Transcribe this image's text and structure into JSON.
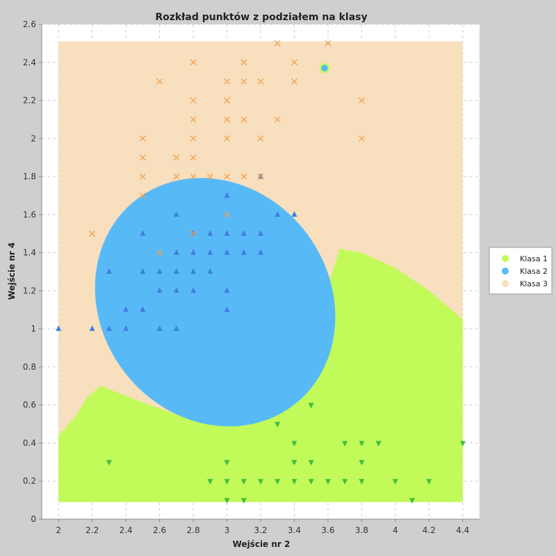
{
  "chart_data": {
    "type": "scatter",
    "title": "Rozkład punktów z podziałem na klasy",
    "xlabel": "Wejście nr 2",
    "ylabel": "Wejście nr 4",
    "xlim": [
      1.9,
      4.5
    ],
    "ylim": [
      0,
      2.6
    ],
    "x_ticks": [
      "2",
      "2.2",
      "2.4",
      "2.6",
      "2.8",
      "3",
      "3.2",
      "3.4",
      "3.6",
      "3.8",
      "4",
      "4.2",
      "4.4"
    ],
    "y_ticks": [
      "0",
      "0.2",
      "0.4",
      "0.6",
      "0.8",
      "1",
      "1.2",
      "1.4",
      "1.6",
      "1.8",
      "2",
      "2.2",
      "2.4",
      "2.6"
    ],
    "grid": true,
    "legend_position": "right",
    "legend": [
      {
        "name": "Klasa 1",
        "color": "#c2fa5a"
      },
      {
        "name": "Klasa 2",
        "color": "#58b9f7"
      },
      {
        "name": "Klasa 3",
        "color": "#f8dfbd"
      }
    ],
    "regions_colors": {
      "klasa1": "#c2fa5a",
      "klasa2": "#58b9f7",
      "klasa3": "#f8dfbd"
    },
    "region_domain": {
      "x": [
        2.0,
        4.4
      ],
      "y": [
        0.09,
        2.51
      ]
    },
    "region_klasa2_ellipse": {
      "cx": 2.93,
      "cy": 1.14,
      "rx": 0.68,
      "ry": 0.68,
      "angle_deg": 37
    },
    "region_klasa1_boundary": [
      [
        2.0,
        0.44
      ],
      [
        2.1,
        0.54
      ],
      [
        2.17,
        0.64
      ],
      [
        2.25,
        0.7
      ],
      [
        2.45,
        0.63
      ],
      [
        2.7,
        0.55
      ],
      [
        3.0,
        0.58
      ],
      [
        3.25,
        0.75
      ],
      [
        3.45,
        1.0
      ],
      [
        3.6,
        1.23
      ],
      [
        3.67,
        1.42
      ],
      [
        3.8,
        1.4
      ],
      [
        4.0,
        1.32
      ],
      [
        4.2,
        1.2
      ],
      [
        4.4,
        1.05
      ]
    ],
    "marker_styles": {
      "klasa1": {
        "shape": "triangle-down",
        "color": "#3fbf3f"
      },
      "klasa2": {
        "shape": "triangle-up",
        "color": "#3f7fe0"
      },
      "klasa3": {
        "shape": "x",
        "color": "#f0a050"
      }
    },
    "series": [
      {
        "class": "klasa1",
        "points": [
          [
            2.3,
            0.3
          ],
          [
            2.9,
            0.2
          ],
          [
            3.0,
            0.3
          ],
          [
            3.0,
            0.2
          ],
          [
            3.0,
            0.1
          ],
          [
            3.1,
            0.2
          ],
          [
            3.1,
            0.1
          ],
          [
            3.2,
            0.2
          ],
          [
            3.3,
            0.2
          ],
          [
            3.3,
            0.5
          ],
          [
            3.4,
            0.4
          ],
          [
            3.4,
            0.3
          ],
          [
            3.4,
            0.2
          ],
          [
            3.5,
            0.6
          ],
          [
            3.5,
            0.3
          ],
          [
            3.5,
            0.2
          ],
          [
            3.6,
            0.2
          ],
          [
            3.7,
            0.4
          ],
          [
            3.7,
            0.2
          ],
          [
            3.8,
            0.4
          ],
          [
            3.8,
            0.3
          ],
          [
            3.8,
            0.2
          ],
          [
            3.9,
            0.4
          ],
          [
            4.0,
            0.2
          ],
          [
            4.1,
            0.1
          ],
          [
            4.2,
            0.2
          ],
          [
            4.4,
            0.4
          ]
        ]
      },
      {
        "class": "klasa2",
        "points": [
          [
            2.0,
            1.0
          ],
          [
            2.2,
            1.0
          ],
          [
            2.3,
            1.0
          ],
          [
            2.3,
            1.3
          ],
          [
            2.4,
            1.0
          ],
          [
            2.4,
            1.1
          ],
          [
            2.5,
            1.1
          ],
          [
            2.5,
            1.3
          ],
          [
            2.5,
            1.5
          ],
          [
            2.6,
            1.0
          ],
          [
            2.6,
            1.2
          ],
          [
            2.6,
            1.3
          ],
          [
            2.7,
            1.0
          ],
          [
            2.7,
            1.2
          ],
          [
            2.7,
            1.3
          ],
          [
            2.7,
            1.4
          ],
          [
            2.7,
            1.6
          ],
          [
            2.8,
            1.2
          ],
          [
            2.8,
            1.3
          ],
          [
            2.8,
            1.4
          ],
          [
            2.8,
            1.5
          ],
          [
            2.9,
            1.3
          ],
          [
            2.9,
            1.4
          ],
          [
            2.9,
            1.5
          ],
          [
            3.0,
            1.1
          ],
          [
            3.0,
            1.2
          ],
          [
            3.0,
            1.4
          ],
          [
            3.0,
            1.5
          ],
          [
            3.0,
            1.7
          ],
          [
            3.1,
            1.4
          ],
          [
            3.1,
            1.5
          ],
          [
            3.2,
            1.4
          ],
          [
            3.2,
            1.5
          ],
          [
            3.2,
            1.8
          ],
          [
            3.3,
            1.6
          ],
          [
            3.4,
            1.6
          ]
        ]
      },
      {
        "class": "klasa3",
        "points": [
          [
            2.2,
            1.5
          ],
          [
            2.5,
            1.7
          ],
          [
            2.5,
            1.8
          ],
          [
            2.5,
            1.9
          ],
          [
            2.5,
            2.0
          ],
          [
            2.6,
            1.4
          ],
          [
            2.6,
            2.3
          ],
          [
            2.7,
            1.8
          ],
          [
            2.7,
            1.9
          ],
          [
            2.8,
            1.5
          ],
          [
            2.8,
            1.8
          ],
          [
            2.8,
            1.9
          ],
          [
            2.8,
            2.0
          ],
          [
            2.8,
            2.1
          ],
          [
            2.8,
            2.2
          ],
          [
            2.8,
            2.4
          ],
          [
            2.9,
            1.8
          ],
          [
            3.0,
            1.6
          ],
          [
            3.0,
            1.8
          ],
          [
            3.0,
            2.0
          ],
          [
            3.0,
            2.1
          ],
          [
            3.0,
            2.2
          ],
          [
            3.0,
            2.3
          ],
          [
            3.1,
            1.8
          ],
          [
            3.1,
            2.1
          ],
          [
            3.1,
            2.3
          ],
          [
            3.1,
            2.4
          ],
          [
            3.2,
            1.8
          ],
          [
            3.2,
            2.0
          ],
          [
            3.2,
            2.3
          ],
          [
            3.3,
            2.1
          ],
          [
            3.3,
            2.5
          ],
          [
            3.4,
            2.3
          ],
          [
            3.4,
            2.4
          ],
          [
            3.6,
            2.5
          ],
          [
            3.8,
            2.0
          ],
          [
            3.8,
            2.2
          ]
        ]
      }
    ],
    "highlight_point": {
      "x": 3.58,
      "y": 2.37,
      "fill": "#58b9f7",
      "ring": "#c2fa5a"
    }
  }
}
